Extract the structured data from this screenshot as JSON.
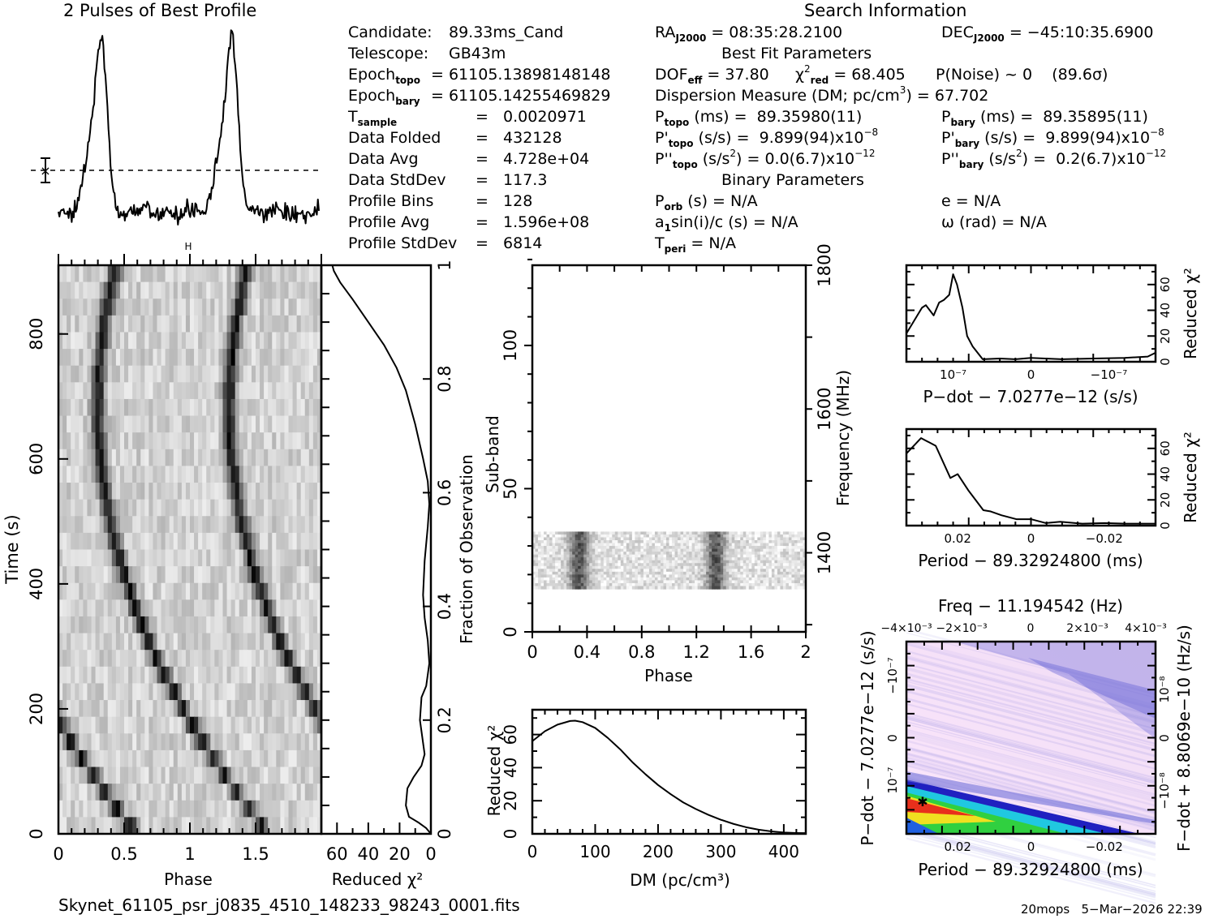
{
  "profile_title": "2 Pulses of Best Profile",
  "info_left": [
    {
      "label": "Candidate:",
      "value": "89.33ms_Cand"
    },
    {
      "label": "Telescope:",
      "value": "GB43m"
    },
    {
      "label": "Epoch",
      "sub": "topo",
      "value": "= 61105.13898148148"
    },
    {
      "label": "Epoch",
      "sub": "bary",
      "value": "= 61105.14255469829"
    },
    {
      "label": "T",
      "sub": "sample",
      "value": "=   0.0020971"
    },
    {
      "label": "Data Folded",
      "value": "=   432128"
    },
    {
      "label": "Data Avg",
      "value": "=   4.728e+04"
    },
    {
      "label": "Data StdDev",
      "value": "=   117.3"
    },
    {
      "label": "Profile Bins",
      "value": "=   128"
    },
    {
      "label": "Profile Avg",
      "value": "=   1.596e+08"
    },
    {
      "label": "Profile StdDev",
      "value": "=   6814"
    }
  ],
  "search_info": {
    "title": "Search Information",
    "ra_label": "RA",
    "ra_sub": "J2000",
    "ra_value": " = 08:35:28.2100",
    "dec_label": "DEC",
    "dec_sub": "J2000",
    "dec_value": " = −45:10:35.6900",
    "best_fit_title": "Best Fit Parameters",
    "dof_label": "DOF",
    "dof_sub": "eff",
    "dof_value": " = 37.80",
    "chi_label": "χ",
    "chi_sup": "2",
    "chi_sub": "red",
    "chi_value": " = 68.405",
    "pnoise": "P(Noise) ~ 0    (89.6σ)",
    "dm_line": "Dispersion Measure (DM; pc/cm",
    "dm_sup": "3",
    "dm_value": ") = 67.702",
    "p_topo_label": "P",
    "p_topo_sub": "topo",
    "p_topo_value": " (ms) =  89.35980(11)",
    "p_bary_label": "P",
    "p_bary_sub": "bary",
    "p_bary_value": " (ms) =  89.35895(11)",
    "pd_topo_label": "P'",
    "pd_topo_sub": "topo",
    "pd_topo_value": " (s/s) =  9.899(94)x10",
    "pd_topo_exp": "−8",
    "pd_bary_label": "P'",
    "pd_bary_sub": "bary",
    "pd_bary_value": " (s/s) =  9.899(94)x10",
    "pd_bary_exp": "−8",
    "pdd_topo_label": "P''",
    "pdd_topo_sub": "topo",
    "pdd_topo_value": " (s/s",
    "pdd_topo_value2": ") = 0.0(6.7)x10",
    "pdd_topo_exp": "−12",
    "pdd_bary_label": "P''",
    "pdd_bary_sub": "bary",
    "pdd_bary_value": " (s/s",
    "pdd_bary_value2": ") =  0.2(6.7)x10",
    "pdd_bary_exp": "−12",
    "binary_title": "Binary Parameters",
    "porb_label": "P",
    "porb_sub": "orb",
    "porb_value": " (s) = N/A",
    "e_line": "e = N/A",
    "a1_label": "a",
    "a1_sub": "1",
    "a1_value": "sin(i)/c (s) = N/A",
    "omega_line": "ω (rad) = N/A",
    "tperi_label": "T",
    "tperi_sub": "peri",
    "tperi_value": " = N/A"
  },
  "footer": {
    "filename": "Skynet_61105_psr_j0835_4510_148233_98243_0001.fits",
    "stamp": "20mops   5−Mar−2026 22:39"
  },
  "chart_data": [
    {
      "id": "profile",
      "type": "line",
      "title": "2 Pulses of Best Profile",
      "xlabel": "",
      "ylabel": "",
      "xlim": [
        0,
        2
      ],
      "description": "Two pulse periods of folded profile; peaks near phase 0.33 and 1.33, dashed mean line with error bar",
      "peaks_phase": [
        0.33,
        1.33
      ]
    },
    {
      "id": "time-phase",
      "type": "heatmap",
      "xlabel": "Phase",
      "ylabel": "Time (s)",
      "xlim": [
        0,
        2
      ],
      "ylim": [
        0,
        910
      ],
      "xticks": [
        "0",
        "0.5",
        "1",
        "1.5"
      ],
      "yticks": [
        "0",
        "200",
        "400",
        "600",
        "800"
      ]
    },
    {
      "id": "time-chi2",
      "type": "line",
      "xlabel": "Reduced χ²",
      "ylabel": "Fraction of Observation",
      "xlim": [
        70,
        0
      ],
      "ylim": [
        0,
        1
      ],
      "xticks": [
        "60",
        "40",
        "20",
        "0"
      ],
      "yticks": [
        "0",
        "0.2",
        "0.4",
        "0.6",
        "0.8",
        "1"
      ],
      "points": [
        [
          0,
          0
        ],
        [
          3,
          0.01
        ],
        [
          8,
          0.02
        ],
        [
          14,
          0.03
        ],
        [
          16,
          0.05
        ],
        [
          15,
          0.08
        ],
        [
          11,
          0.1
        ],
        [
          6,
          0.12
        ],
        [
          4,
          0.14
        ],
        [
          6,
          0.18
        ],
        [
          7,
          0.2
        ],
        [
          6,
          0.24
        ],
        [
          3,
          0.26
        ],
        [
          1,
          0.3
        ],
        [
          2,
          0.34
        ],
        [
          4,
          0.38
        ],
        [
          5,
          0.42
        ],
        [
          4,
          0.48
        ],
        [
          2,
          0.54
        ],
        [
          1,
          0.58
        ],
        [
          2,
          0.62
        ],
        [
          5,
          0.66
        ],
        [
          10,
          0.72
        ],
        [
          16,
          0.78
        ],
        [
          22,
          0.82
        ],
        [
          30,
          0.86
        ],
        [
          40,
          0.9
        ],
        [
          50,
          0.94
        ],
        [
          58,
          0.97
        ],
        [
          62,
          0.99
        ],
        [
          63,
          1.0
        ]
      ]
    },
    {
      "id": "subband-phase",
      "type": "heatmap",
      "xlabel": "Phase",
      "ylabel": "Sub-band",
      "y2label": "Frequency (MHz)",
      "xlim": [
        0,
        2
      ],
      "ylim": [
        0,
        128
      ],
      "y2lim": [
        1290,
        1800
      ],
      "xticks": [
        "0",
        "0.4",
        "0.8",
        "1.2",
        "1.6",
        "2"
      ],
      "yticks": [
        "0",
        "50",
        "100"
      ],
      "y2ticks": [
        "1400",
        "1600",
        "1800"
      ],
      "active_subbands": [
        15,
        35
      ]
    },
    {
      "id": "dm-chi2",
      "type": "line",
      "xlabel": "DM (pc/cm³)",
      "ylabel": "Reduced χ²",
      "xlim": [
        0,
        435
      ],
      "ylim": [
        0,
        75
      ],
      "xticks": [
        "0",
        "100",
        "200",
        "300",
        "400"
      ],
      "yticks": [
        "0",
        "20",
        "40",
        "60"
      ],
      "points": [
        [
          0,
          56
        ],
        [
          20,
          62
        ],
        [
          40,
          66
        ],
        [
          60,
          68.2
        ],
        [
          68,
          68.4
        ],
        [
          80,
          67.5
        ],
        [
          100,
          64
        ],
        [
          120,
          58
        ],
        [
          140,
          51
        ],
        [
          160,
          43
        ],
        [
          180,
          36
        ],
        [
          200,
          29.5
        ],
        [
          220,
          24
        ],
        [
          240,
          19
        ],
        [
          260,
          15
        ],
        [
          280,
          11.5
        ],
        [
          300,
          8.5
        ],
        [
          320,
          6
        ],
        [
          340,
          4
        ],
        [
          360,
          2.5
        ],
        [
          380,
          1.5
        ],
        [
          400,
          0.8
        ],
        [
          420,
          0.5
        ],
        [
          435,
          0.4
        ]
      ]
    },
    {
      "id": "pdot-chi2",
      "type": "line",
      "xlabel": "P−dot − 7.0277e−12 (s/s)",
      "ylabel": "Reduced χ²",
      "xlim": [
        1.6e-07,
        -1.6e-07
      ],
      "ylim": [
        0,
        75
      ],
      "xticks": [
        "10⁻⁷",
        "0",
        "−10⁻⁷"
      ],
      "yticks": [
        "0",
        "20",
        "40",
        "60"
      ],
      "points": [
        [
          1.6e-07,
          22
        ],
        [
          1.5e-07,
          32
        ],
        [
          1.4e-07,
          42
        ],
        [
          1.35e-07,
          44
        ],
        [
          1.25e-07,
          36
        ],
        [
          1.18e-07,
          46
        ],
        [
          1.12e-07,
          48
        ],
        [
          1.05e-07,
          52
        ],
        [
          1e-07,
          68
        ],
        [
          9.5e-08,
          60
        ],
        [
          8.8e-08,
          42
        ],
        [
          8.2e-08,
          20
        ],
        [
          7.5e-08,
          12
        ],
        [
          6.2e-08,
          2
        ],
        [
          4e-08,
          2.5
        ],
        [
          2e-08,
          2
        ],
        [
          0.0,
          3
        ],
        [
          -4e-08,
          2
        ],
        [
          -8e-08,
          2.5
        ],
        [
          -1.2e-07,
          3
        ],
        [
          -1.5e-07,
          4
        ],
        [
          -1.6e-07,
          7
        ]
      ]
    },
    {
      "id": "period-chi2",
      "type": "line",
      "xlabel": "Period − 89.32924800 (ms)",
      "ylabel": "Reduced χ²",
      "xlim": [
        0.034,
        -0.034
      ],
      "ylim": [
        0,
        75
      ],
      "xticks": [
        "0.02",
        "0",
        "−0.02"
      ],
      "yticks": [
        "0",
        "20",
        "40",
        "60"
      ],
      "points": [
        [
          0.034,
          56
        ],
        [
          0.03,
          68
        ],
        [
          0.026,
          62
        ],
        [
          0.022,
          37
        ],
        [
          0.02,
          40
        ],
        [
          0.017,
          27
        ],
        [
          0.013,
          12
        ],
        [
          0.011,
          11
        ],
        [
          0.008,
          8
        ],
        [
          0.004,
          5
        ],
        [
          0.0,
          5
        ],
        [
          -0.004,
          2
        ],
        [
          -0.008,
          3
        ],
        [
          -0.014,
          1.5
        ],
        [
          -0.02,
          2
        ],
        [
          -0.026,
          1.5
        ],
        [
          -0.034,
          1.5
        ]
      ]
    },
    {
      "id": "pdot-period-map",
      "type": "heatmap",
      "title": "Freq − 11.194542 (Hz)",
      "xlabel": "Period − 89.32924800 (ms)",
      "ylabel": "P−dot − 7.0277e−12 (s/s)",
      "y2label": "F−dot + 8.8069e−10 (Hz/s)",
      "xticks": [
        "0.02",
        "0",
        "−0.02"
      ],
      "x2ticks": [
        "−4×10⁻³",
        "−2×10⁻³",
        "0",
        "2×10⁻³",
        "4×10⁻³"
      ],
      "yticks": [
        "10⁻⁷",
        "0",
        "−10⁻⁷"
      ],
      "y2ticks": [
        "−10⁻⁸",
        "0",
        "10⁻⁸"
      ],
      "best_marker": {
        "period": 0.03,
        "pdot": 1e-07
      }
    }
  ]
}
